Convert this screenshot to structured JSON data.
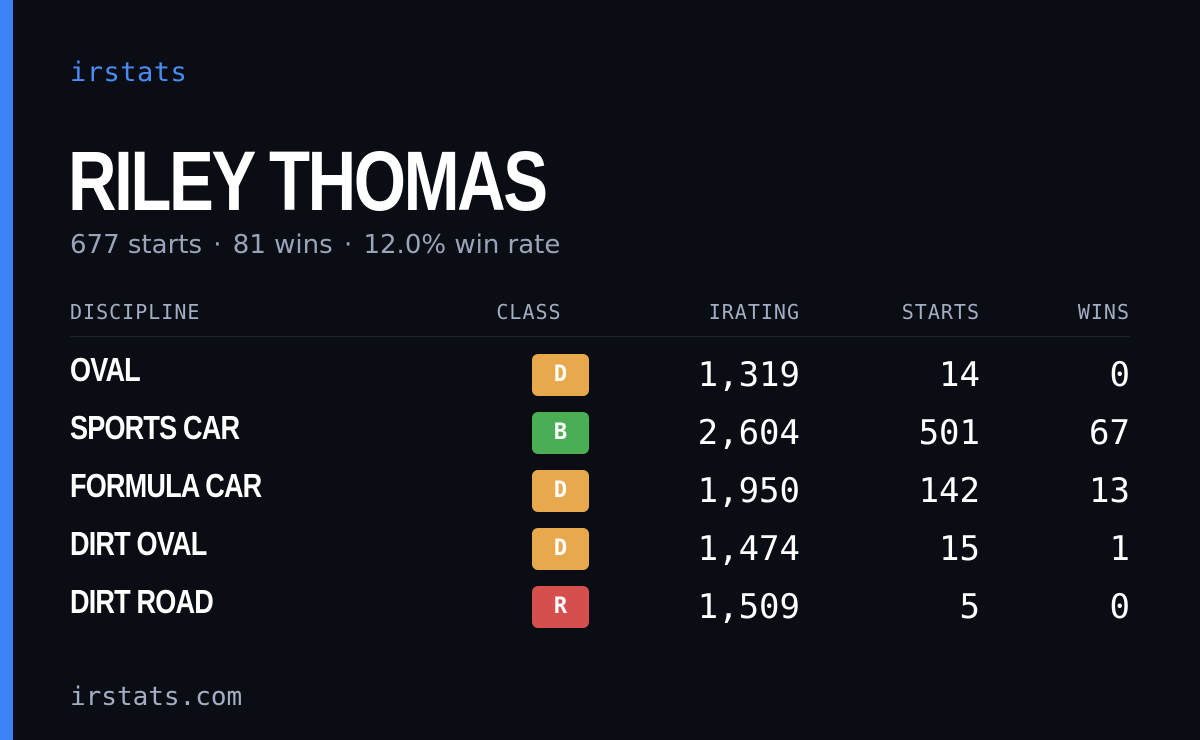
{
  "brand": "irstats",
  "player": {
    "name": "RILEY THOMAS",
    "starts": "677 starts",
    "wins": "81 wins",
    "win_rate": "12.0% win rate",
    "separator": "·"
  },
  "table": {
    "headers": {
      "discipline": "DISCIPLINE",
      "class": "CLASS",
      "irating": "IRATING",
      "starts": "STARTS",
      "wins": "WINS"
    },
    "rows": [
      {
        "discipline": "OVAL",
        "class": "D",
        "class_color": "#e8a84c",
        "irating": "1,319",
        "starts": "14",
        "wins": "0"
      },
      {
        "discipline": "SPORTS CAR",
        "class": "B",
        "class_color": "#4cae54",
        "irating": "2,604",
        "starts": "501",
        "wins": "67"
      },
      {
        "discipline": "FORMULA CAR",
        "class": "D",
        "class_color": "#e8a84c",
        "irating": "1,950",
        "starts": "142",
        "wins": "13"
      },
      {
        "discipline": "DIRT OVAL",
        "class": "D",
        "class_color": "#e8a84c",
        "irating": "1,474",
        "starts": "15",
        "wins": "1"
      },
      {
        "discipline": "DIRT ROAD",
        "class": "R",
        "class_color": "#d64f4f",
        "irating": "1,509",
        "starts": "5",
        "wins": "0"
      }
    ]
  },
  "footer": "irstats.com",
  "colors": {
    "background": "#0a0d14",
    "accent": "#3b82f6",
    "muted_text": "#9aa4b8"
  }
}
